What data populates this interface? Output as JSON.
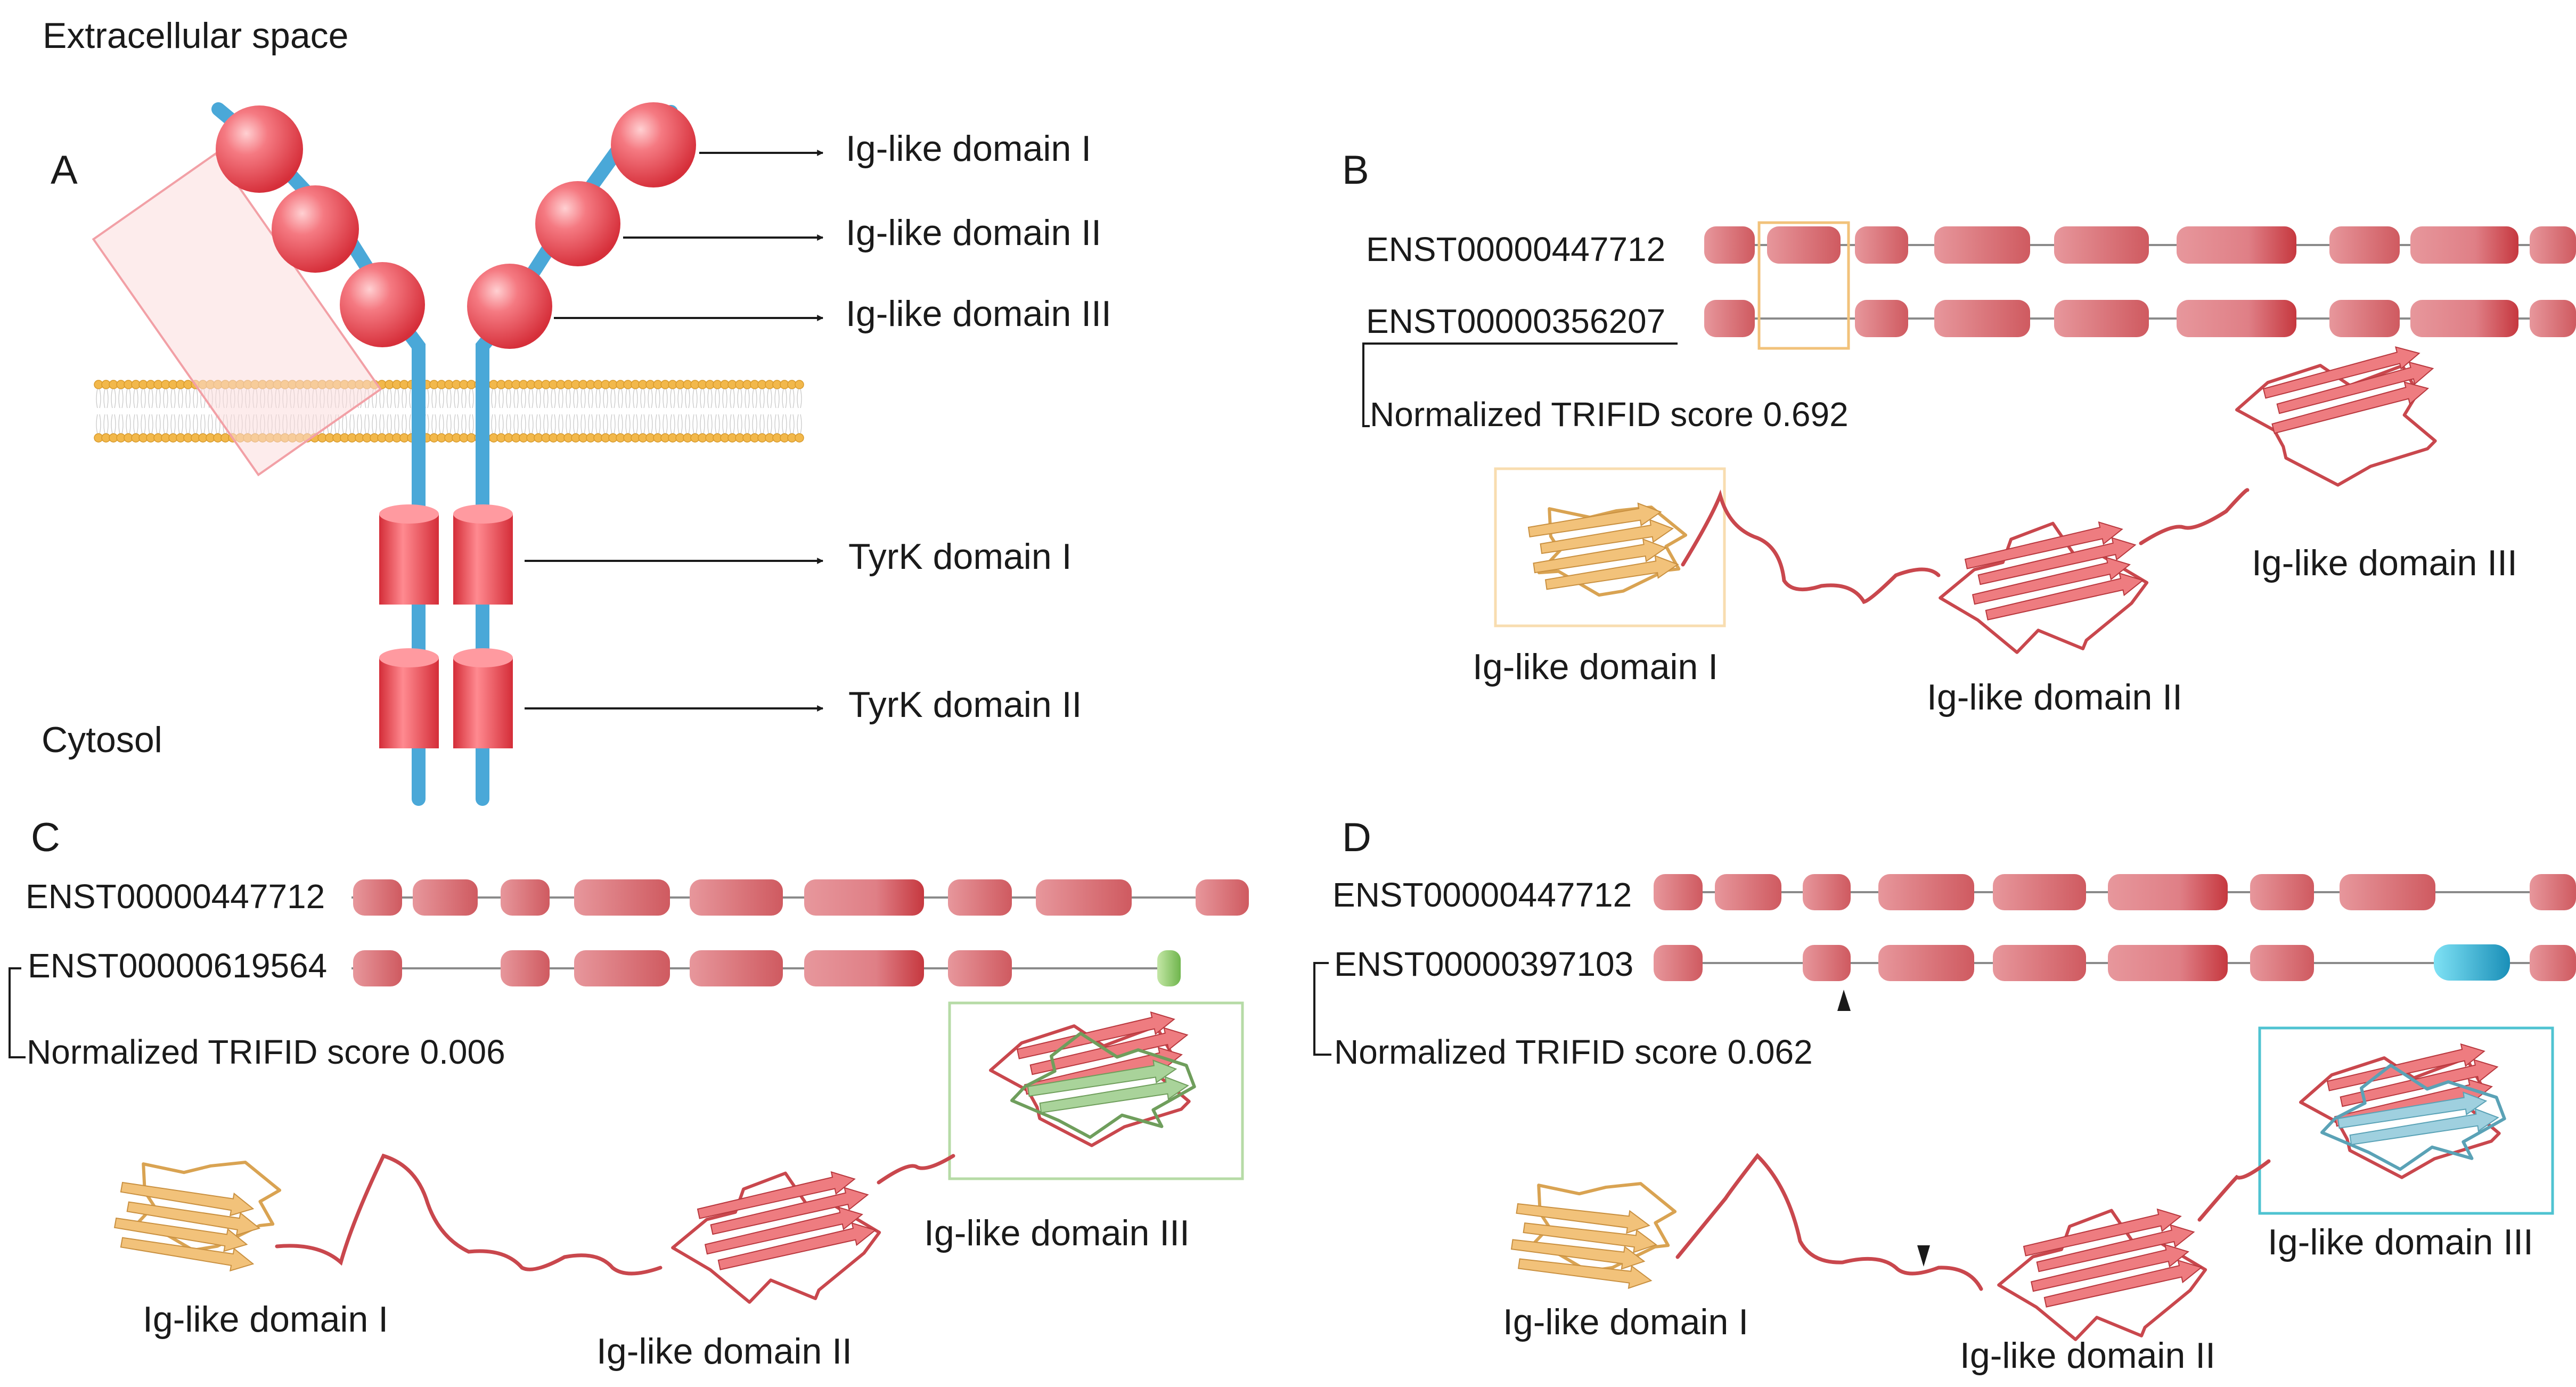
{
  "panel_a": {
    "letter": "A",
    "extracellular": "Extracellular space",
    "cytosol": "Cytosol",
    "labels": [
      "Ig-like domain I",
      "Ig-like domain II",
      "Ig-like domain III",
      "TyrK domain I",
      "TyrK domain II"
    ]
  },
  "panel_b": {
    "letter": "B",
    "transcript_ref": "ENST00000447712",
    "transcript_alt": "ENST00000356207",
    "score": "Normalized TRIFID score 0.692",
    "domains": [
      "Ig-like domain I",
      "Ig-like domain II",
      "Ig-like domain III"
    ]
  },
  "panel_c": {
    "letter": "C",
    "transcript_ref": "ENST00000447712",
    "transcript_alt": "ENST00000619564",
    "score": "Normalized TRIFID score  0.006",
    "domains": [
      "Ig-like domain I",
      "Ig-like domain II",
      "Ig-like domain III"
    ]
  },
  "panel_d": {
    "letter": "D",
    "transcript_ref": "ENST00000447712",
    "transcript_alt": "ENST00000397103",
    "score": "Normalized TRIFID score  0.062",
    "domains": [
      "Ig-like domain I",
      "Ig-like domain II",
      "Ig-like domain III"
    ]
  },
  "colors": {
    "exon": "#e0868c",
    "exon_dark": "#c9474d",
    "domain_I": "#e9b66b",
    "domain_II": "#e8777c",
    "domain_III_green": "#a9d39a",
    "domain_III_cyan": "#9fd0df",
    "highlight_orange": "#f2c27a",
    "highlight_green": "#a9d39a",
    "highlight_cyan": "#4fc3d1",
    "receptor_blue": "#4aa8d8",
    "receptor_red": "#e8444e",
    "membrane": "#f2b84b"
  }
}
